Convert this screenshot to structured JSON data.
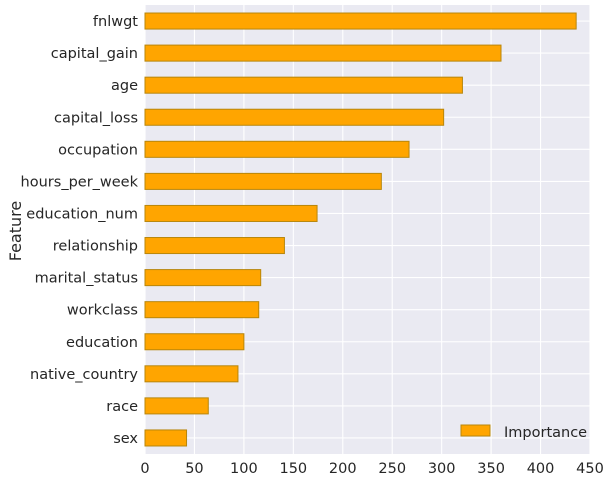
{
  "chart_data": {
    "type": "bar",
    "orientation": "horizontal",
    "title": "",
    "xlabel": "",
    "ylabel": "Feature",
    "xlim": [
      0,
      450
    ],
    "xticks": [
      0,
      50,
      100,
      150,
      200,
      250,
      300,
      350,
      400,
      450
    ],
    "grid": true,
    "legend_position": "bottom-right",
    "bar_color": "#FFA500",
    "bar_edge_color": "#B8860B",
    "background_color": "#EAEAF2",
    "grid_color": "#FFFFFF",
    "categories": [
      "fnlwgt",
      "capital_gain",
      "age",
      "capital_loss",
      "occupation",
      "hours_per_week",
      "education_num",
      "relationship",
      "marital_status",
      "workclass",
      "education",
      "native_country",
      "race",
      "sex"
    ],
    "series": [
      {
        "name": "Importance",
        "values": [
          436,
          360,
          321,
          302,
          267,
          239,
          174,
          141,
          117,
          115,
          100,
          94,
          64,
          42
        ]
      }
    ]
  }
}
